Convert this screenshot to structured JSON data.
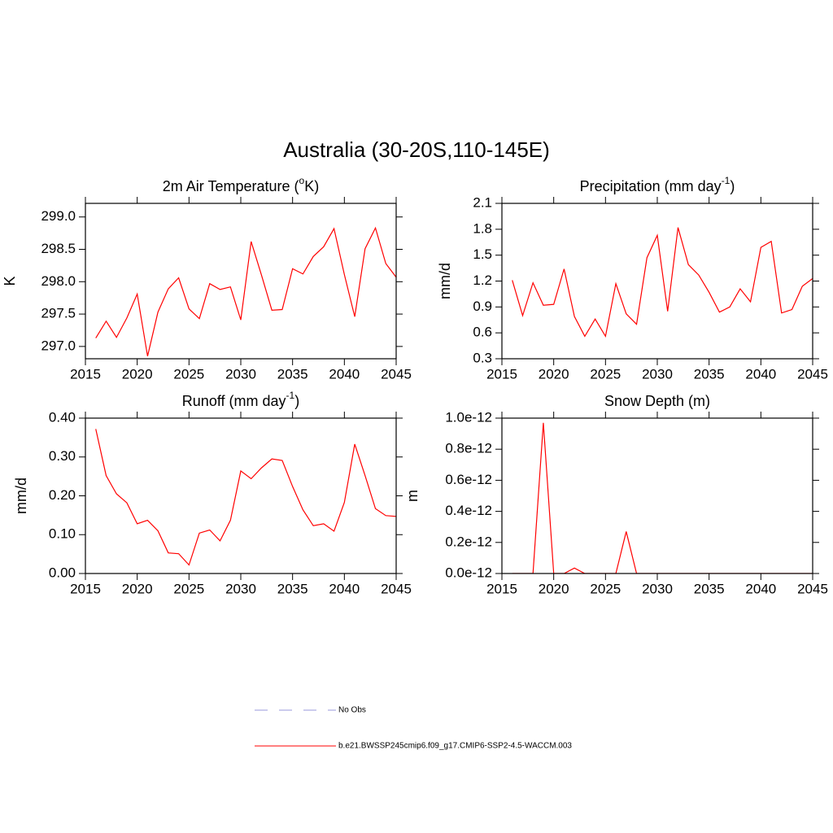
{
  "title": "Australia (30-20S,110-145E)",
  "legend": [
    {
      "name": "No Obs",
      "color": "#9999dd",
      "dash": true
    },
    {
      "name": "b.e21.BWSSP245cmip6.f09_g17.CMIP6-SSP2-4.5-WACCM.003",
      "color": "#ff0000",
      "dash": false
    }
  ],
  "chart_data": [
    {
      "type": "line",
      "title": [
        "2m Air Temperature (",
        "o",
        "K)"
      ],
      "y_label": "K",
      "x": [
        2016,
        2017,
        2018,
        2019,
        2020,
        2021,
        2022,
        2023,
        2024,
        2025,
        2026,
        2027,
        2028,
        2029,
        2030,
        2031,
        2032,
        2033,
        2034,
        2035,
        2036,
        2037,
        2038,
        2039,
        2040,
        2041,
        2042,
        2043,
        2044,
        2045
      ],
      "series": [
        {
          "color": "#ff0000",
          "values": [
            297.13,
            297.39,
            297.14,
            297.44,
            297.81,
            296.85,
            297.53,
            297.89,
            298.06,
            297.58,
            297.43,
            297.97,
            297.88,
            297.92,
            297.41,
            298.62,
            298.1,
            297.56,
            297.57,
            298.2,
            298.12,
            298.39,
            298.54,
            298.82,
            298.11,
            297.46,
            298.51,
            298.83,
            298.28,
            298.07
          ]
        }
      ],
      "xlim": [
        2015,
        2045
      ],
      "xticks": [
        2015,
        2020,
        2025,
        2030,
        2035,
        2040,
        2045
      ],
      "ylim": [
        296.81,
        299.21
      ],
      "yticks": [
        {
          "value": 297,
          "label": "297.0"
        },
        297.5,
        {
          "value": 298,
          "label": "298.0"
        },
        298.5,
        {
          "value": 299,
          "label": "299.0"
        }
      ]
    },
    {
      "type": "line",
      "title": [
        "Precipitation (mm day",
        "-1",
        ")"
      ],
      "y_label": "mm/d",
      "x": [
        2016,
        2017,
        2018,
        2019,
        2020,
        2021,
        2022,
        2023,
        2024,
        2025,
        2026,
        2027,
        2028,
        2029,
        2030,
        2031,
        2032,
        2033,
        2034,
        2035,
        2036,
        2037,
        2038,
        2039,
        2040,
        2041,
        2042,
        2043,
        2044,
        2045
      ],
      "series": [
        {
          "color": "#ff0000",
          "values": [
            1.21,
            0.8,
            1.18,
            0.92,
            0.93,
            1.34,
            0.79,
            0.56,
            0.76,
            0.56,
            1.17,
            0.82,
            0.7,
            1.47,
            1.73,
            0.85,
            1.82,
            1.39,
            1.27,
            1.07,
            0.84,
            0.9,
            1.11,
            0.96,
            1.59,
            1.66,
            0.83,
            0.87,
            1.14,
            1.23
          ]
        }
      ],
      "xlim": [
        2015,
        2045
      ],
      "xticks": [
        2015,
        2020,
        2025,
        2030,
        2035,
        2040,
        2045
      ],
      "ylim": [
        0.3,
        2.1
      ],
      "yticks": [
        0.3,
        0.6,
        0.9,
        1.2,
        1.5,
        1.8,
        2.1
      ]
    },
    {
      "type": "line",
      "title": [
        "Runoff (mm day",
        "-1",
        ")"
      ],
      "y_label": "mm/d",
      "x": [
        2016,
        2017,
        2018,
        2019,
        2020,
        2021,
        2022,
        2023,
        2024,
        2025,
        2026,
        2027,
        2028,
        2029,
        2030,
        2031,
        2032,
        2033,
        2034,
        2035,
        2036,
        2037,
        2038,
        2039,
        2040,
        2041,
        2042,
        2043,
        2044,
        2045
      ],
      "series": [
        {
          "color": "#ff0000",
          "values": [
            0.372,
            0.252,
            0.205,
            0.182,
            0.128,
            0.137,
            0.11,
            0.053,
            0.051,
            0.022,
            0.104,
            0.112,
            0.084,
            0.137,
            0.264,
            0.244,
            0.272,
            0.295,
            0.291,
            0.224,
            0.164,
            0.123,
            0.128,
            0.109,
            0.183,
            0.333,
            0.252,
            0.167,
            0.149,
            0.147
          ]
        }
      ],
      "xlim": [
        2015,
        2045
      ],
      "xticks": [
        2015,
        2020,
        2025,
        2030,
        2035,
        2040,
        2045
      ],
      "ylim": [
        0,
        0.4
      ],
      "yticks": [
        {
          "value": 0,
          "label": "0.00"
        },
        {
          "value": 0.1,
          "label": "0.10"
        },
        {
          "value": 0.2,
          "label": "0.20"
        },
        {
          "value": 0.3,
          "label": "0.30"
        },
        {
          "value": 0.4,
          "label": "0.40"
        }
      ]
    },
    {
      "type": "line",
      "title": [
        "Snow Depth (m)"
      ],
      "y_label": "m",
      "x": [
        2016,
        2017,
        2018,
        2019,
        2020,
        2021,
        2022,
        2023,
        2024,
        2025,
        2026,
        2027,
        2028,
        2029,
        2030,
        2031,
        2032,
        2033,
        2034,
        2035,
        2036,
        2037,
        2038,
        2039,
        2040,
        2041,
        2042,
        2043,
        2044,
        2045
      ],
      "series": [
        {
          "color": "#ff0000",
          "values": [
            0,
            0,
            0,
            9.7e-13,
            0,
            0,
            3.5e-14,
            0,
            0,
            0,
            0,
            2.7e-13,
            0,
            0,
            0,
            0,
            0,
            0,
            0,
            0,
            0,
            0,
            0,
            0,
            0,
            0,
            0,
            0,
            0,
            0
          ]
        }
      ],
      "xlim": [
        2015,
        2045
      ],
      "xticks": [
        2015,
        2020,
        2025,
        2030,
        2035,
        2040,
        2045
      ],
      "ylim": [
        0,
        1e-12
      ],
      "yticks": [
        {
          "value": 0,
          "label": "0.0e-12"
        },
        {
          "value": 2e-13,
          "label": "0.2e-12"
        },
        {
          "value": 4e-13,
          "label": "0.4e-12"
        },
        {
          "value": 6e-13,
          "label": "0.6e-12"
        },
        {
          "value": 8e-13,
          "label": "0.8e-12"
        },
        {
          "value": 1e-12,
          "label": "1.0e-12"
        }
      ]
    }
  ]
}
